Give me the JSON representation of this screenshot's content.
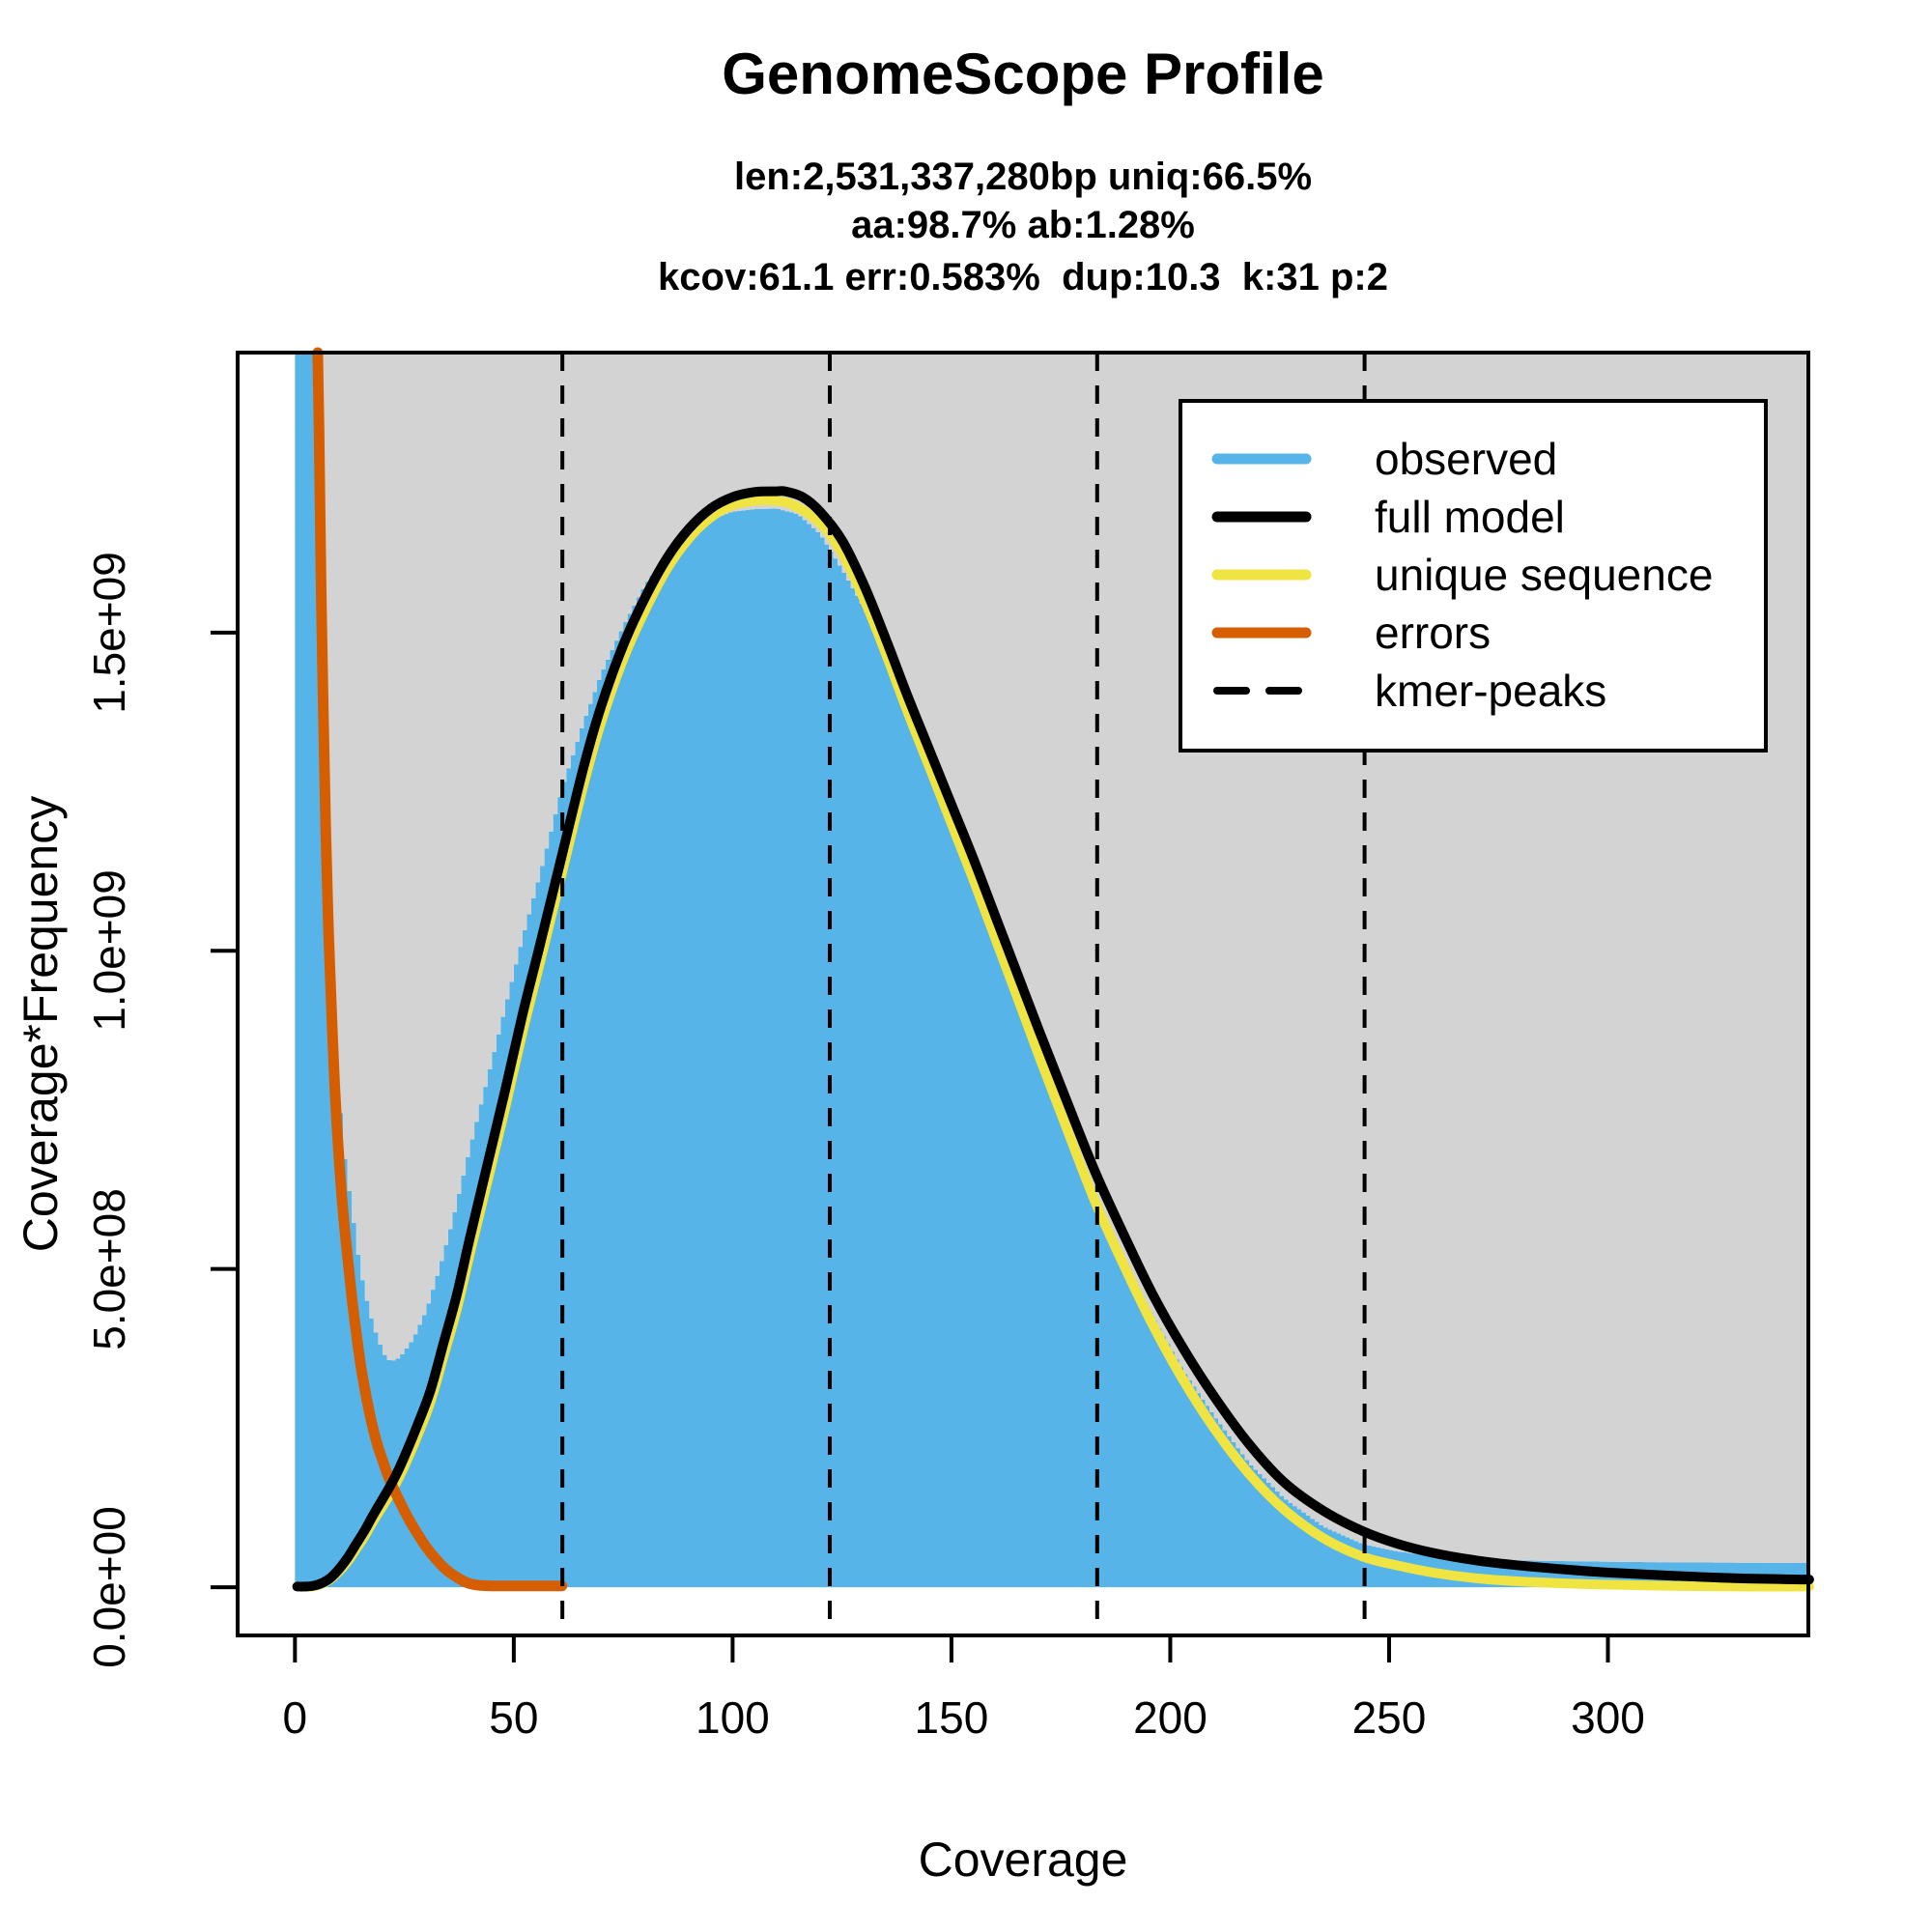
{
  "header": {
    "title": "GenomeScope Profile",
    "stats": [
      "len:2,531,337,280bp uniq:66.5%",
      "aa:98.7% ab:1.28%",
      "kcov:61.1 err:0.583%  dup:10.3  k:31 p:2"
    ]
  },
  "axes": {
    "x": {
      "label": "Coverage",
      "ticks": [
        {
          "v": 0,
          "label": "0"
        },
        {
          "v": 50,
          "label": "50"
        },
        {
          "v": 100,
          "label": "100"
        },
        {
          "v": 150,
          "label": "150"
        },
        {
          "v": 200,
          "label": "200"
        },
        {
          "v": 250,
          "label": "250"
        },
        {
          "v": 300,
          "label": "300"
        }
      ]
    },
    "y": {
      "label": "Coverage*Frequency",
      "ticks": [
        {
          "v": 0.0,
          "label": "0.0e+00"
        },
        {
          "v": 0.5,
          "label": "5.0e+08"
        },
        {
          "v": 1.0,
          "label": "1.0e+09"
        },
        {
          "v": 1.5,
          "label": "1.5e+09"
        }
      ]
    }
  },
  "legend": {
    "position": "top-right-inside",
    "items": [
      {
        "label": "observed",
        "color": "#56B4E9",
        "style": "solid"
      },
      {
        "label": "full model",
        "color": "#000000",
        "style": "solid"
      },
      {
        "label": "unique sequence",
        "color": "#F0E442",
        "style": "solid"
      },
      {
        "label": "errors",
        "color": "#D55E00",
        "style": "solid"
      },
      {
        "label": "kmer-peaks",
        "color": "#000000",
        "style": "dashed"
      }
    ]
  },
  "colors": {
    "observed_fill": "#56B4E9",
    "clipped_region": "#D3D3D3",
    "full_model": "#000000",
    "unique_sequence": "#F0E442",
    "errors": "#D55E00",
    "axis": "#000000",
    "background": "#ffffff"
  },
  "chart_data": {
    "type": "area",
    "title": "GenomeScope Profile",
    "xlabel": "Coverage",
    "ylabel": "Coverage*Frequency",
    "value_units": "1e9",
    "xlim": [
      -13.1,
      345.8
    ],
    "ylim": [
      -0.0758,
      1.94
    ],
    "grid": false,
    "legend_position": "top-right",
    "kmer_peaks": [
      61.1,
      122.2,
      183.3,
      244.4
    ],
    "series": [
      {
        "name": "observed",
        "render": "step-area",
        "points": [
          [
            0,
            2.0
          ],
          [
            1,
            2.0
          ],
          [
            2,
            2.0
          ],
          [
            3,
            2.0
          ],
          [
            4,
            2.0
          ],
          [
            5,
            1.88
          ],
          [
            6,
            1.5
          ],
          [
            7,
            1.22
          ],
          [
            8,
            1.03
          ],
          [
            9,
            0.9
          ],
          [
            10,
            0.79
          ],
          [
            11,
            0.7
          ],
          [
            12,
            0.645
          ],
          [
            13,
            0.6
          ],
          [
            14,
            0.545
          ],
          [
            15,
            0.5
          ],
          [
            16,
            0.465
          ],
          [
            17,
            0.435
          ],
          [
            18,
            0.41
          ],
          [
            19,
            0.39
          ],
          [
            20,
            0.372
          ],
          [
            21,
            0.358
          ],
          [
            22,
            0.356
          ],
          [
            23,
            0.357
          ],
          [
            24,
            0.362
          ],
          [
            25,
            0.37
          ],
          [
            27,
            0.39
          ],
          [
            30,
            0.435
          ],
          [
            33,
            0.5
          ],
          [
            36,
            0.575
          ],
          [
            40,
            0.69
          ],
          [
            44,
            0.8
          ],
          [
            48,
            0.91
          ],
          [
            52,
            1.02
          ],
          [
            56,
            1.12
          ],
          [
            61,
            1.255
          ],
          [
            66,
            1.36
          ],
          [
            70,
            1.435
          ],
          [
            75,
            1.51
          ],
          [
            80,
            1.575
          ],
          [
            85,
            1.625
          ],
          [
            90,
            1.658
          ],
          [
            95,
            1.678
          ],
          [
            100,
            1.69
          ],
          [
            105,
            1.694
          ],
          [
            110,
            1.695
          ],
          [
            115,
            1.686
          ],
          [
            120,
            1.655
          ],
          [
            125,
            1.6
          ],
          [
            130,
            1.54
          ],
          [
            135,
            1.465
          ],
          [
            140,
            1.385
          ],
          [
            145,
            1.3
          ],
          [
            150,
            1.215
          ],
          [
            155,
            1.125
          ],
          [
            160,
            1.035
          ],
          [
            165,
            0.94
          ],
          [
            170,
            0.85
          ],
          [
            176,
            0.74
          ],
          [
            183,
            0.615
          ],
          [
            190,
            0.5
          ],
          [
            196,
            0.425
          ],
          [
            203,
            0.34
          ],
          [
            210,
            0.27
          ],
          [
            218,
            0.195
          ],
          [
            226,
            0.14
          ],
          [
            235,
            0.095
          ],
          [
            244,
            0.068
          ],
          [
            252,
            0.056
          ],
          [
            260,
            0.049
          ],
          [
            270,
            0.044
          ],
          [
            280,
            0.042
          ],
          [
            290,
            0.041
          ],
          [
            300,
            0.04
          ],
          [
            315,
            0.039
          ],
          [
            330,
            0.0385
          ],
          [
            346,
            0.038
          ]
        ]
      },
      {
        "name": "full model",
        "render": "line",
        "points": [
          [
            0.5,
            0.001
          ],
          [
            2,
            0.001
          ],
          [
            4,
            0.002
          ],
          [
            6,
            0.006
          ],
          [
            8,
            0.014
          ],
          [
            10,
            0.028
          ],
          [
            12,
            0.046
          ],
          [
            14,
            0.068
          ],
          [
            16,
            0.09
          ],
          [
            18,
            0.115
          ],
          [
            21,
            0.15
          ],
          [
            23,
            0.175
          ],
          [
            25,
            0.205
          ],
          [
            28,
            0.255
          ],
          [
            31,
            0.31
          ],
          [
            34,
            0.385
          ],
          [
            37,
            0.46
          ],
          [
            40,
            0.55
          ],
          [
            44,
            0.665
          ],
          [
            48,
            0.78
          ],
          [
            52,
            0.9
          ],
          [
            56,
            1.01
          ],
          [
            61,
            1.15
          ],
          [
            66,
            1.29
          ],
          [
            70,
            1.385
          ],
          [
            75,
            1.48
          ],
          [
            80,
            1.555
          ],
          [
            85,
            1.617
          ],
          [
            90,
            1.663
          ],
          [
            95,
            1.695
          ],
          [
            100,
            1.713
          ],
          [
            105,
            1.721
          ],
          [
            110,
            1.722
          ],
          [
            112,
            1.722
          ],
          [
            116,
            1.713
          ],
          [
            120,
            1.69
          ],
          [
            125,
            1.645
          ],
          [
            130,
            1.575
          ],
          [
            135,
            1.49
          ],
          [
            140,
            1.4
          ],
          [
            145,
            1.315
          ],
          [
            150,
            1.23
          ],
          [
            155,
            1.145
          ],
          [
            160,
            1.055
          ],
          [
            165,
            0.965
          ],
          [
            170,
            0.875
          ],
          [
            176,
            0.77
          ],
          [
            183,
            0.65
          ],
          [
            190,
            0.545
          ],
          [
            196,
            0.46
          ],
          [
            203,
            0.375
          ],
          [
            210,
            0.3
          ],
          [
            218,
            0.225
          ],
          [
            226,
            0.165
          ],
          [
            235,
            0.12
          ],
          [
            244,
            0.088
          ],
          [
            252,
            0.068
          ],
          [
            260,
            0.054
          ],
          [
            270,
            0.042
          ],
          [
            280,
            0.034
          ],
          [
            290,
            0.028
          ],
          [
            300,
            0.023
          ],
          [
            315,
            0.018
          ],
          [
            330,
            0.014
          ],
          [
            346,
            0.012
          ]
        ]
      },
      {
        "name": "unique sequence",
        "render": "line",
        "points": [
          [
            1,
            0.001
          ],
          [
            4,
            0.001
          ],
          [
            6,
            0.005
          ],
          [
            8,
            0.012
          ],
          [
            10,
            0.024
          ],
          [
            12,
            0.04
          ],
          [
            14,
            0.06
          ],
          [
            16,
            0.081
          ],
          [
            18,
            0.105
          ],
          [
            21,
            0.138
          ],
          [
            23,
            0.162
          ],
          [
            25,
            0.19
          ],
          [
            28,
            0.238
          ],
          [
            31,
            0.292
          ],
          [
            34,
            0.364
          ],
          [
            37,
            0.437
          ],
          [
            40,
            0.525
          ],
          [
            44,
            0.638
          ],
          [
            48,
            0.752
          ],
          [
            52,
            0.872
          ],
          [
            56,
            0.982
          ],
          [
            61,
            1.122
          ],
          [
            66,
            1.262
          ],
          [
            70,
            1.36
          ],
          [
            75,
            1.458
          ],
          [
            80,
            1.535
          ],
          [
            85,
            1.6
          ],
          [
            90,
            1.648
          ],
          [
            95,
            1.681
          ],
          [
            100,
            1.7
          ],
          [
            105,
            1.707
          ],
          [
            110,
            1.707
          ],
          [
            114,
            1.7
          ],
          [
            120,
            1.672
          ],
          [
            125,
            1.625
          ],
          [
            130,
            1.553
          ],
          [
            135,
            1.467
          ],
          [
            140,
            1.375
          ],
          [
            145,
            1.288
          ],
          [
            150,
            1.2
          ],
          [
            155,
            1.112
          ],
          [
            160,
            1.02
          ],
          [
            165,
            0.928
          ],
          [
            170,
            0.835
          ],
          [
            176,
            0.727
          ],
          [
            183,
            0.603
          ],
          [
            190,
            0.497
          ],
          [
            196,
            0.412
          ],
          [
            203,
            0.325
          ],
          [
            210,
            0.25
          ],
          [
            218,
            0.178
          ],
          [
            226,
            0.122
          ],
          [
            235,
            0.077
          ],
          [
            244,
            0.048
          ],
          [
            252,
            0.034
          ],
          [
            260,
            0.023
          ],
          [
            270,
            0.014
          ],
          [
            280,
            0.009
          ],
          [
            290,
            0.006
          ],
          [
            300,
            0.004
          ],
          [
            315,
            0.002
          ],
          [
            330,
            0.001
          ],
          [
            346,
            0.001
          ]
        ]
      },
      {
        "name": "errors",
        "render": "line",
        "points": [
          [
            5.2,
            1.95
          ],
          [
            5.5,
            1.82
          ],
          [
            6,
            1.56
          ],
          [
            6.5,
            1.37
          ],
          [
            7,
            1.2
          ],
          [
            7.5,
            1.07
          ],
          [
            8,
            0.97
          ],
          [
            9,
            0.8
          ],
          [
            10,
            0.68
          ],
          [
            11,
            0.59
          ],
          [
            12,
            0.52
          ],
          [
            13,
            0.455
          ],
          [
            14,
            0.4
          ],
          [
            15,
            0.35
          ],
          [
            16,
            0.31
          ],
          [
            17,
            0.275
          ],
          [
            18,
            0.245
          ],
          [
            19,
            0.22
          ],
          [
            20,
            0.2
          ],
          [
            21,
            0.18
          ],
          [
            22,
            0.163
          ],
          [
            23,
            0.148
          ],
          [
            24,
            0.134
          ],
          [
            25,
            0.12
          ],
          [
            26,
            0.107
          ],
          [
            27,
            0.095
          ],
          [
            28,
            0.084
          ],
          [
            29,
            0.073
          ],
          [
            30,
            0.063
          ],
          [
            31,
            0.054
          ],
          [
            32,
            0.046
          ],
          [
            33,
            0.038
          ],
          [
            34,
            0.031
          ],
          [
            35,
            0.025
          ],
          [
            36,
            0.02
          ],
          [
            37,
            0.0155
          ],
          [
            38,
            0.0115
          ],
          [
            39,
            0.008
          ],
          [
            40,
            0.0055
          ],
          [
            41,
            0.004
          ],
          [
            42,
            0.003
          ],
          [
            43,
            0.0025
          ],
          [
            45,
            0.002
          ],
          [
            50,
            0.002
          ],
          [
            55,
            0.002
          ],
          [
            61,
            0.002
          ]
        ]
      }
    ]
  }
}
